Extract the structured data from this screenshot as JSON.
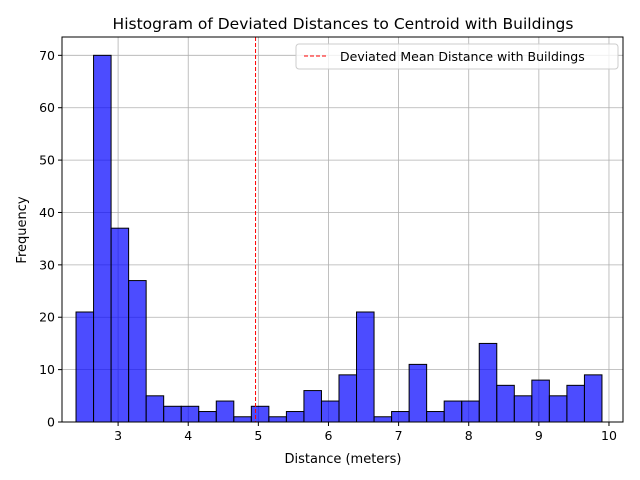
{
  "chart_data": {
    "type": "bar",
    "title": "Histogram of Deviated Distances to Centroid with Buildings",
    "xlabel": "Distance (meters)",
    "ylabel": "Frequency",
    "xlim": [
      2.2,
      10.2
    ],
    "ylim": [
      0,
      73.5
    ],
    "xticks": [
      3,
      4,
      5,
      6,
      7,
      8,
      9,
      10
    ],
    "yticks": [
      0,
      10,
      20,
      30,
      40,
      50,
      60,
      70
    ],
    "grid": true,
    "bar_color": "#0000ff",
    "bar_alpha": 0.7,
    "edge_color": "#000000",
    "bins": [
      {
        "x0": 2.4,
        "x1": 2.65,
        "count": 21
      },
      {
        "x0": 2.65,
        "x1": 2.9,
        "count": 70
      },
      {
        "x0": 2.9,
        "x1": 3.15,
        "count": 37
      },
      {
        "x0": 3.15,
        "x1": 3.4,
        "count": 27
      },
      {
        "x0": 3.4,
        "x1": 3.65,
        "count": 5
      },
      {
        "x0": 3.65,
        "x1": 3.9,
        "count": 3
      },
      {
        "x0": 3.9,
        "x1": 4.15,
        "count": 3
      },
      {
        "x0": 4.15,
        "x1": 4.4,
        "count": 2
      },
      {
        "x0": 4.4,
        "x1": 4.65,
        "count": 4
      },
      {
        "x0": 4.65,
        "x1": 4.9,
        "count": 1
      },
      {
        "x0": 4.9,
        "x1": 5.15,
        "count": 3
      },
      {
        "x0": 5.15,
        "x1": 5.4,
        "count": 1
      },
      {
        "x0": 5.4,
        "x1": 5.65,
        "count": 2
      },
      {
        "x0": 5.65,
        "x1": 5.9,
        "count": 6
      },
      {
        "x0": 5.9,
        "x1": 6.15,
        "count": 4
      },
      {
        "x0": 6.15,
        "x1": 6.4,
        "count": 9
      },
      {
        "x0": 6.4,
        "x1": 6.65,
        "count": 21
      },
      {
        "x0": 6.65,
        "x1": 6.9,
        "count": 1
      },
      {
        "x0": 6.9,
        "x1": 7.15,
        "count": 2
      },
      {
        "x0": 7.15,
        "x1": 7.4,
        "count": 11
      },
      {
        "x0": 7.4,
        "x1": 7.65,
        "count": 2
      },
      {
        "x0": 7.65,
        "x1": 7.9,
        "count": 4
      },
      {
        "x0": 7.9,
        "x1": 8.15,
        "count": 4
      },
      {
        "x0": 8.15,
        "x1": 8.4,
        "count": 15
      },
      {
        "x0": 8.4,
        "x1": 8.65,
        "count": 7
      },
      {
        "x0": 8.65,
        "x1": 8.9,
        "count": 5
      },
      {
        "x0": 8.9,
        "x1": 9.15,
        "count": 8
      },
      {
        "x0": 9.15,
        "x1": 9.4,
        "count": 5
      },
      {
        "x0": 9.4,
        "x1": 9.65,
        "count": 7
      },
      {
        "x0": 9.65,
        "x1": 9.9,
        "count": 9
      }
    ],
    "mean_line": {
      "x": 4.96,
      "label": "Deviated Mean Distance with Buildings",
      "color": "#ff0000",
      "style": "dashed"
    },
    "legend_position": "top-right"
  }
}
